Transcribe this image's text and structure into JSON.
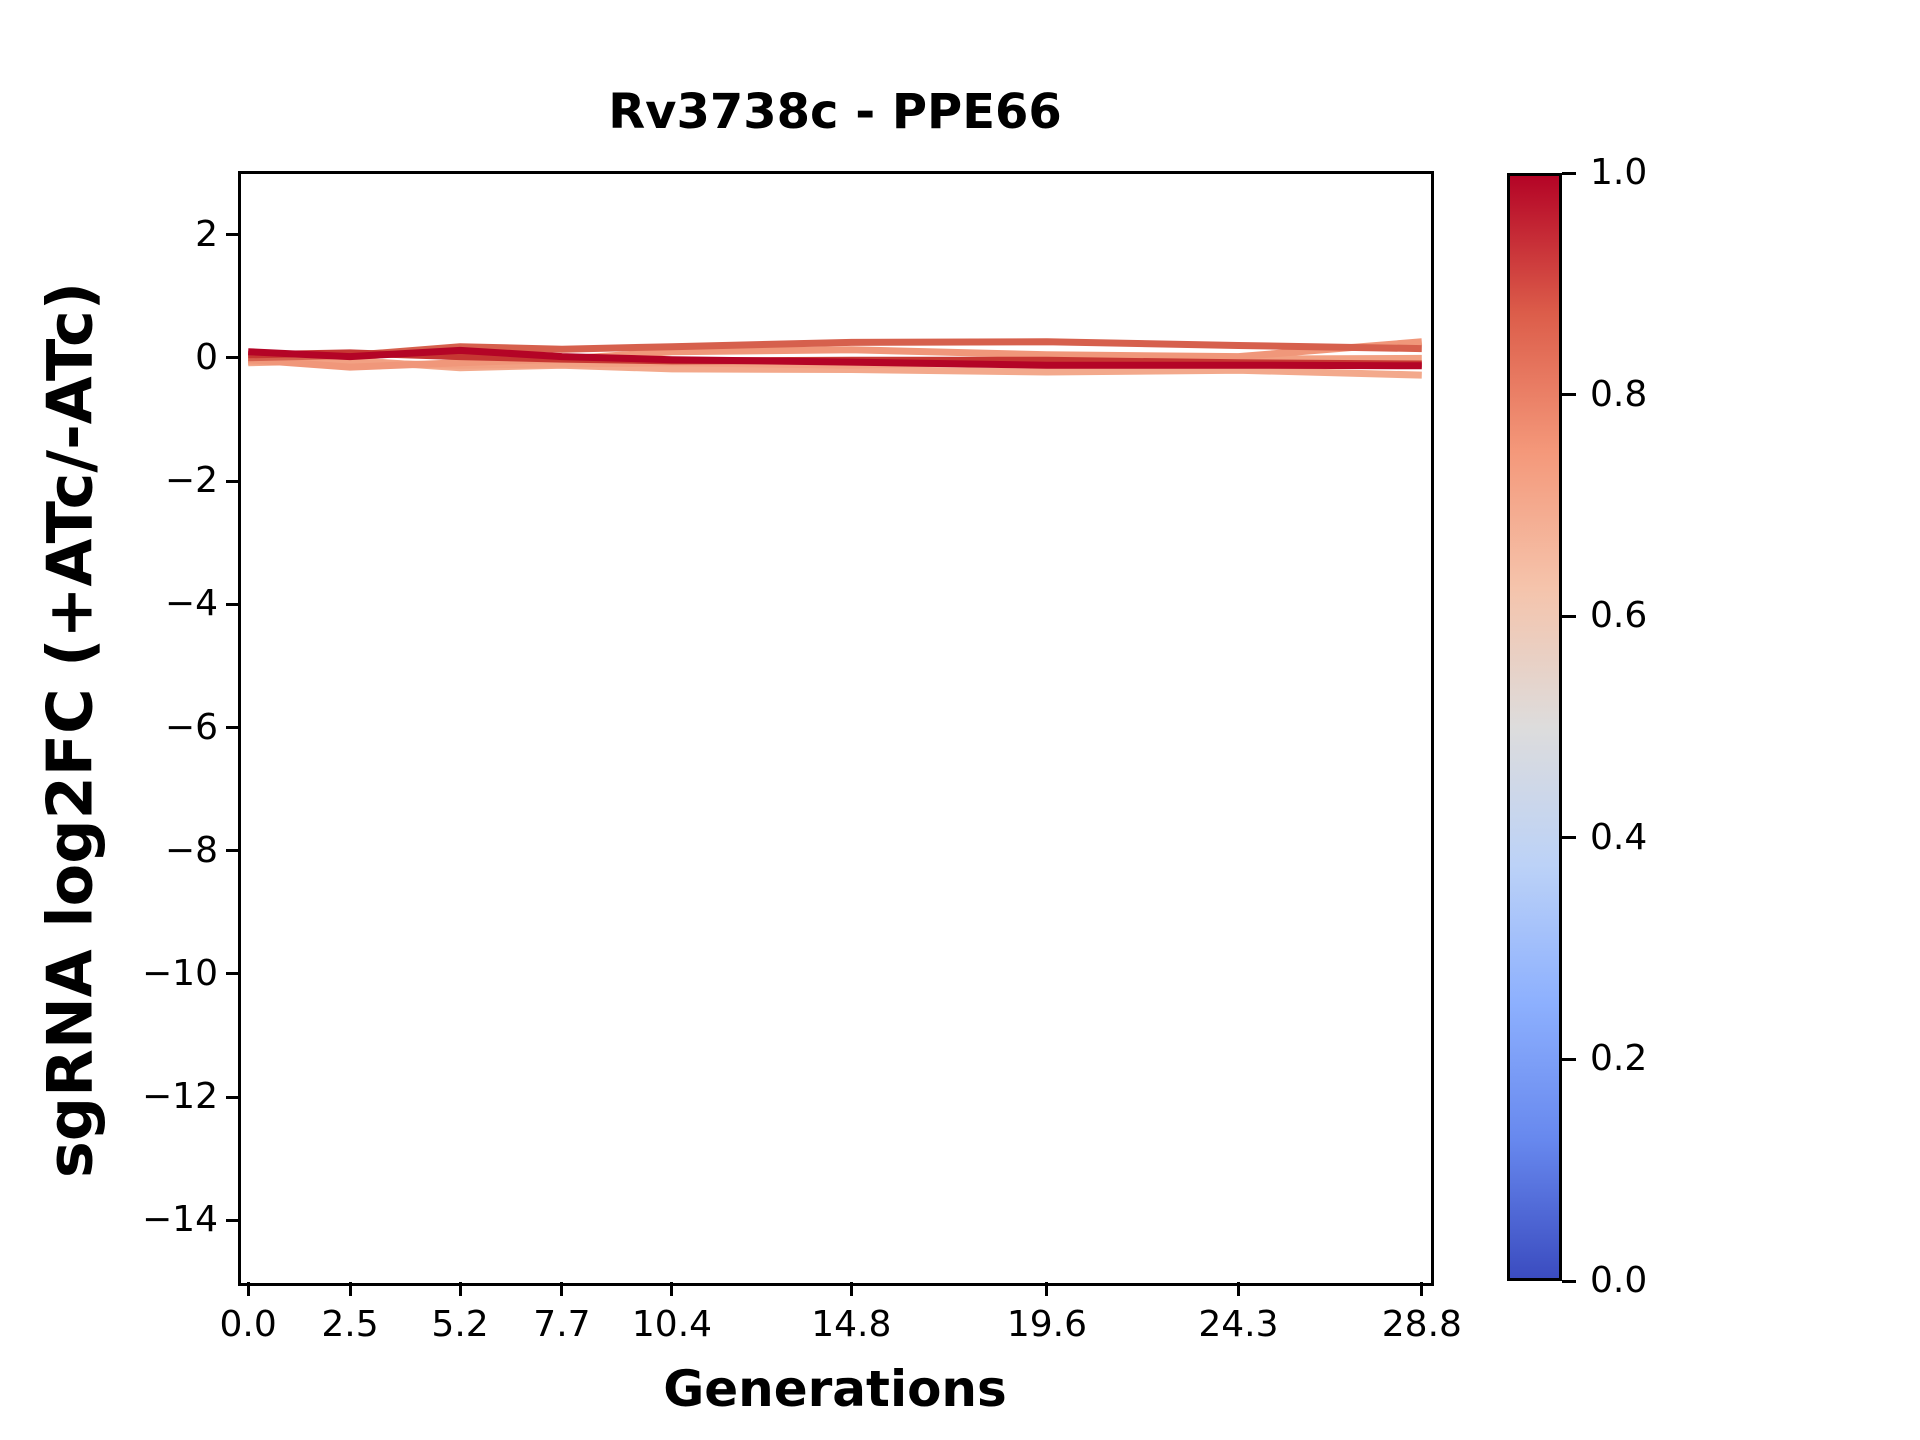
{
  "chart_data": {
    "type": "line",
    "title": "Rv3738c - PPE66",
    "xlabel": "Generations",
    "ylabel": "sgRNA log2FC (+ATc/-ATc)",
    "x": [
      0.0,
      2.5,
      5.2,
      7.7,
      10.4,
      14.8,
      19.6,
      24.3,
      28.8
    ],
    "xtick_labels": [
      "0.0",
      "2.5",
      "5.2",
      "7.7",
      "10.4",
      "14.8",
      "19.6",
      "24.3",
      "28.8"
    ],
    "ytick_values": [
      2,
      0,
      -2,
      -4,
      -6,
      -8,
      -10,
      -12,
      -14
    ],
    "ytick_labels": [
      "2",
      "0",
      "−2",
      "−4",
      "−6",
      "−8",
      "−10",
      "−12",
      "−14"
    ],
    "xlim": [
      -0.2,
      29.0
    ],
    "ylim": [
      -15.0,
      3.0
    ],
    "grid": false,
    "legend": "none",
    "series": [
      {
        "colorbar_value": 0.58,
        "color": "#f3a98c",
        "values": [
          -0.08,
          -0.04,
          -0.16,
          -0.12,
          -0.18,
          -0.19,
          -0.23,
          -0.2,
          -0.28
        ]
      },
      {
        "colorbar_value": 0.62,
        "color": "#f2a183",
        "values": [
          -0.06,
          -0.08,
          -0.12,
          -0.1,
          -0.08,
          -0.12,
          -0.05,
          -0.02,
          -0.01
        ]
      },
      {
        "colorbar_value": 0.66,
        "color": "#f0977a",
        "values": [
          -0.03,
          -0.15,
          -0.08,
          -0.02,
          0.1,
          0.13,
          0.05,
          0.02,
          0.26
        ]
      },
      {
        "colorbar_value": 0.82,
        "color": "#d6604d",
        "values": [
          0.0,
          0.04,
          0.18,
          0.14,
          0.18,
          0.25,
          0.26,
          0.2,
          0.15
        ]
      },
      {
        "colorbar_value": 0.92,
        "color": "#c63732",
        "values": [
          0.05,
          0.08,
          0.02,
          -0.02,
          -0.05,
          -0.04,
          -0.04,
          -0.08,
          -0.1
        ]
      },
      {
        "colorbar_value": 1.0,
        "color": "#b40426",
        "values": [
          0.1,
          0.02,
          0.12,
          0.02,
          -0.03,
          -0.07,
          -0.12,
          -0.12,
          -0.13
        ]
      }
    ],
    "colorbar": {
      "colormap": "coolwarm",
      "range": [
        0.0,
        1.0
      ],
      "tick_values": [
        1.0,
        0.8,
        0.6,
        0.4,
        0.2,
        0.0
      ],
      "tick_labels": [
        "1.0",
        "0.8",
        "0.6",
        "0.4",
        "0.2",
        "0.0"
      ],
      "gradient_stops": [
        {
          "value": 0.0,
          "color": "#3b4cc0"
        },
        {
          "value": 0.125,
          "color": "#6788ee"
        },
        {
          "value": 0.25,
          "color": "#8db0fe"
        },
        {
          "value": 0.375,
          "color": "#bcd2f7"
        },
        {
          "value": 0.5,
          "color": "#dddcdc"
        },
        {
          "value": 0.625,
          "color": "#f5c4ac"
        },
        {
          "value": 0.75,
          "color": "#f4987a"
        },
        {
          "value": 0.875,
          "color": "#dc5d4a"
        },
        {
          "value": 1.0,
          "color": "#b40426"
        }
      ]
    }
  },
  "colors": {
    "background": "#ffffff",
    "axis": "#000000",
    "text": "#000000"
  }
}
